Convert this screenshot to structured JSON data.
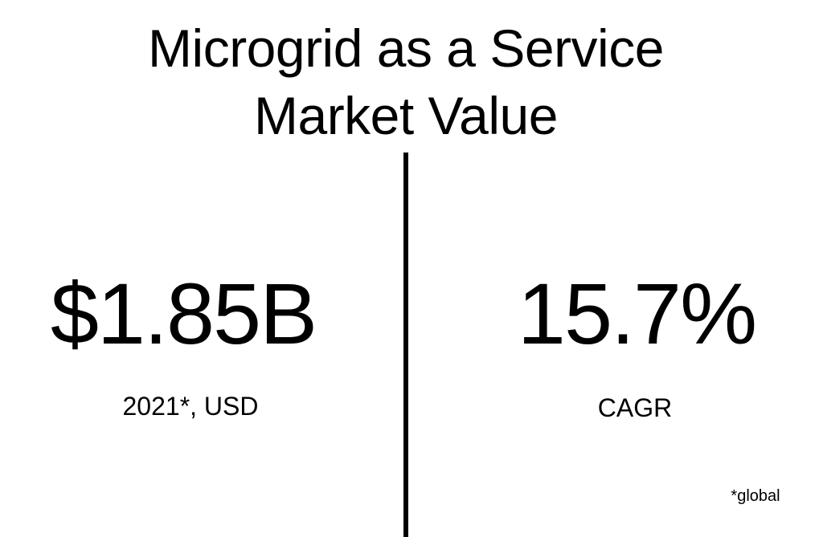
{
  "title": {
    "lines": [
      "Microgrid as a Service",
      "Market Value"
    ]
  },
  "stats": [
    {
      "value": "$1.85B",
      "label": "2021*, USD"
    },
    {
      "value": "15.7%",
      "label": "CAGR"
    }
  ],
  "footnote": "*global"
}
